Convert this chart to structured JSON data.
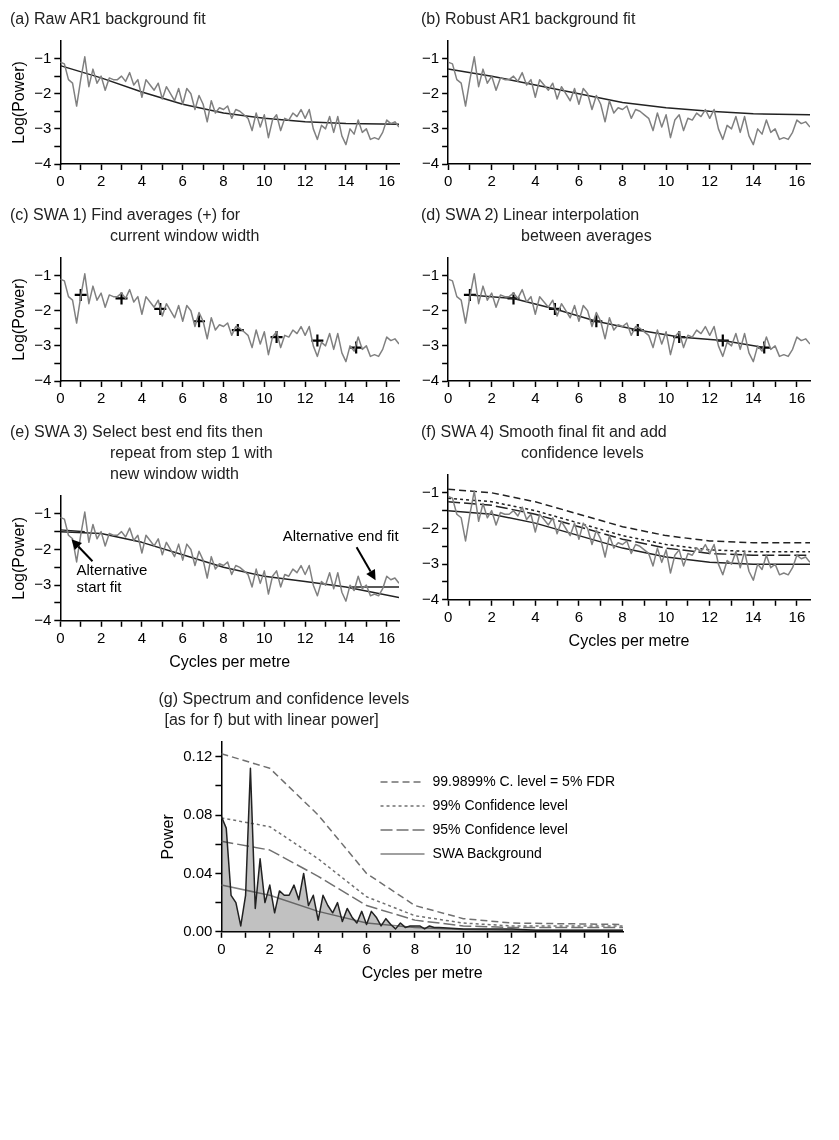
{
  "chart_data": [
    {
      "type": "line",
      "title": "(a) Raw AR1 background fit",
      "ylabel": "Log(Power)",
      "xlim": [
        0,
        16.6
      ],
      "ylim": [
        -4,
        -0.5
      ],
      "xticks": [
        0,
        {
          "value": 1,
          "label": null
        },
        2,
        {
          "value": 3,
          "label": null
        },
        4,
        {
          "value": 5,
          "label": null
        },
        6,
        {
          "value": 7,
          "label": null
        },
        8,
        {
          "value": 9,
          "label": null
        },
        10,
        {
          "value": 11,
          "label": null
        },
        12,
        {
          "value": 13,
          "label": null
        },
        14,
        {
          "value": 15,
          "label": null
        },
        16
      ],
      "yticks": [
        -4,
        {
          "value": -3.5,
          "label": null
        },
        -3,
        {
          "value": -2.5,
          "label": null
        },
        -2,
        {
          "value": -1.5,
          "label": null
        },
        -1
      ],
      "x": [
        0,
        0.2,
        0.4,
        0.6,
        0.8,
        1,
        1.2,
        1.4,
        1.6,
        1.8,
        2,
        2.2,
        2.4,
        2.6,
        2.8,
        3,
        3.2,
        3.4,
        3.6,
        3.8,
        4,
        4.2,
        4.4,
        4.6,
        4.8,
        5,
        5.2,
        5.4,
        5.6,
        5.8,
        6,
        6.2,
        6.4,
        6.6,
        6.8,
        7,
        7.2,
        7.4,
        7.6,
        7.8,
        8,
        8.2,
        8.4,
        8.6,
        8.8,
        9,
        9.2,
        9.4,
        9.6,
        9.8,
        10,
        10.2,
        10.4,
        10.6,
        10.8,
        11,
        11.2,
        11.4,
        11.6,
        11.8,
        12,
        12.2,
        12.4,
        12.6,
        12.8,
        13,
        13.2,
        13.4,
        13.6,
        13.8,
        14,
        14.2,
        14.4,
        14.6,
        14.8,
        15,
        15.2,
        15.4,
        15.6,
        15.8,
        16,
        16.2,
        16.4,
        16.6
      ],
      "series": [
        {
          "color": "#808080",
          "values": [
            -1.1,
            -1.15,
            -1.6,
            -1.7,
            -2.35,
            -1.6,
            -0.95,
            -1.8,
            -1.3,
            -1.7,
            -1.5,
            -1.9,
            -1.55,
            -1.6,
            -1.6,
            -1.5,
            -1.65,
            -1.4,
            -1.75,
            -1.6,
            -2.1,
            -1.6,
            -1.75,
            -1.9,
            -1.7,
            -2.15,
            -1.8,
            -2.0,
            -2.2,
            -1.85,
            -2.3,
            -1.85,
            -2.0,
            -2.45,
            -2.05,
            -2.3,
            -2.8,
            -2.2,
            -2.55,
            -2.4,
            -2.45,
            -2.35,
            -2.7,
            -2.45,
            -2.5,
            -2.6,
            -2.7,
            -3.05,
            -2.55,
            -2.95,
            -2.6,
            -3.25,
            -2.75,
            -2.6,
            -3.05,
            -2.7,
            -2.75,
            -2.55,
            -2.65,
            -2.45,
            -2.7,
            -2.45,
            -3.0,
            -3.3,
            -2.9,
            -3.0,
            -2.65,
            -3.1,
            -2.65,
            -3.2,
            -3.45,
            -3.0,
            -3.15,
            -2.75,
            -3.1,
            -3.0,
            -3.3,
            -3.25,
            -3.3,
            -3.1,
            -2.75,
            -2.85,
            -2.8,
            -2.95
          ]
        },
        {
          "color": "#222222",
          "x": [
            0,
            2,
            4,
            6,
            8,
            10,
            12,
            14,
            16.6
          ],
          "values": [
            -1.2,
            -1.55,
            -1.95,
            -2.3,
            -2.55,
            -2.7,
            -2.8,
            -2.85,
            -2.87
          ]
        }
      ]
    },
    {
      "type": "line",
      "title": "(b) Robust AR1 background fit",
      "xlim": [
        0,
        16.6
      ],
      "ylim": [
        -4,
        -0.5
      ],
      "xticks": [
        0,
        {
          "value": 1,
          "label": null
        },
        2,
        {
          "value": 3,
          "label": null
        },
        4,
        {
          "value": 5,
          "label": null
        },
        6,
        {
          "value": 7,
          "label": null
        },
        8,
        {
          "value": 9,
          "label": null
        },
        10,
        {
          "value": 11,
          "label": null
        },
        12,
        {
          "value": 13,
          "label": null
        },
        14,
        {
          "value": 15,
          "label": null
        },
        16
      ],
      "yticks": [
        -4,
        {
          "value": -3.5,
          "label": null
        },
        -3,
        {
          "value": -2.5,
          "label": null
        },
        -2,
        {
          "value": -1.5,
          "label": null
        },
        -1
      ],
      "x": [
        0,
        0.2,
        0.4,
        0.6,
        0.8,
        1,
        1.2,
        1.4,
        1.6,
        1.8,
        2,
        2.2,
        2.4,
        2.6,
        2.8,
        3,
        3.2,
        3.4,
        3.6,
        3.8,
        4,
        4.2,
        4.4,
        4.6,
        4.8,
        5,
        5.2,
        5.4,
        5.6,
        5.8,
        6,
        6.2,
        6.4,
        6.6,
        6.8,
        7,
        7.2,
        7.4,
        7.6,
        7.8,
        8,
        8.2,
        8.4,
        8.6,
        8.8,
        9,
        9.2,
        9.4,
        9.6,
        9.8,
        10,
        10.2,
        10.4,
        10.6,
        10.8,
        11,
        11.2,
        11.4,
        11.6,
        11.8,
        12,
        12.2,
        12.4,
        12.6,
        12.8,
        13,
        13.2,
        13.4,
        13.6,
        13.8,
        14,
        14.2,
        14.4,
        14.6,
        14.8,
        15,
        15.2,
        15.4,
        15.6,
        15.8,
        16,
        16.2,
        16.4,
        16.6
      ],
      "series": [
        {
          "color": "#808080",
          "values": [
            -1.1,
            -1.15,
            -1.6,
            -1.7,
            -2.35,
            -1.6,
            -0.95,
            -1.8,
            -1.3,
            -1.7,
            -1.5,
            -1.9,
            -1.55,
            -1.6,
            -1.6,
            -1.5,
            -1.65,
            -1.4,
            -1.75,
            -1.6,
            -2.1,
            -1.6,
            -1.75,
            -1.9,
            -1.7,
            -2.15,
            -1.8,
            -2.0,
            -2.2,
            -1.85,
            -2.3,
            -1.85,
            -2.0,
            -2.45,
            -2.05,
            -2.3,
            -2.8,
            -2.2,
            -2.55,
            -2.4,
            -2.45,
            -2.35,
            -2.7,
            -2.45,
            -2.5,
            -2.6,
            -2.7,
            -3.05,
            -2.55,
            -2.95,
            -2.6,
            -3.25,
            -2.75,
            -2.6,
            -3.05,
            -2.7,
            -2.75,
            -2.55,
            -2.65,
            -2.45,
            -2.7,
            -2.45,
            -3.0,
            -3.3,
            -2.9,
            -3.0,
            -2.65,
            -3.1,
            -2.65,
            -3.2,
            -3.45,
            -3.0,
            -3.15,
            -2.75,
            -3.1,
            -3.0,
            -3.3,
            -3.25,
            -3.3,
            -3.1,
            -2.75,
            -2.85,
            -2.8,
            -2.95
          ]
        },
        {
          "color": "#222222",
          "x": [
            0,
            2,
            4,
            6,
            8,
            10,
            12,
            14,
            16.6
          ],
          "values": [
            -1.3,
            -1.5,
            -1.75,
            -2.0,
            -2.25,
            -2.4,
            -2.5,
            -2.57,
            -2.6
          ]
        }
      ]
    },
    {
      "type": "line",
      "title": "(c) SWA 1) Find averages (+) for\ncurrent window width",
      "ylabel": "Log(Power)",
      "xlim": [
        0,
        16.6
      ],
      "ylim": [
        -4,
        -0.5
      ],
      "xticks": [
        0,
        {
          "value": 1,
          "label": null
        },
        2,
        {
          "value": 3,
          "label": null
        },
        4,
        {
          "value": 5,
          "label": null
        },
        6,
        {
          "value": 7,
          "label": null
        },
        8,
        {
          "value": 9,
          "label": null
        },
        10,
        {
          "value": 11,
          "label": null
        },
        12,
        {
          "value": 13,
          "label": null
        },
        14,
        {
          "value": 15,
          "label": null
        },
        16
      ],
      "yticks": [
        -4,
        {
          "value": -3.5,
          "label": null
        },
        -3,
        {
          "value": -2.5,
          "label": null
        },
        -2,
        {
          "value": -1.5,
          "label": null
        },
        -1
      ],
      "x": [
        0,
        0.2,
        0.4,
        0.6,
        0.8,
        1,
        1.2,
        1.4,
        1.6,
        1.8,
        2,
        2.2,
        2.4,
        2.6,
        2.8,
        3,
        3.2,
        3.4,
        3.6,
        3.8,
        4,
        4.2,
        4.4,
        4.6,
        4.8,
        5,
        5.2,
        5.4,
        5.6,
        5.8,
        6,
        6.2,
        6.4,
        6.6,
        6.8,
        7,
        7.2,
        7.4,
        7.6,
        7.8,
        8,
        8.2,
        8.4,
        8.6,
        8.8,
        9,
        9.2,
        9.4,
        9.6,
        9.8,
        10,
        10.2,
        10.4,
        10.6,
        10.8,
        11,
        11.2,
        11.4,
        11.6,
        11.8,
        12,
        12.2,
        12.4,
        12.6,
        12.8,
        13,
        13.2,
        13.4,
        13.6,
        13.8,
        14,
        14.2,
        14.4,
        14.6,
        14.8,
        15,
        15.2,
        15.4,
        15.6,
        15.8,
        16,
        16.2,
        16.4,
        16.6
      ],
      "series": [
        {
          "color": "#808080",
          "values": [
            -1.1,
            -1.15,
            -1.6,
            -1.7,
            -2.35,
            -1.6,
            -0.95,
            -1.8,
            -1.3,
            -1.7,
            -1.5,
            -1.9,
            -1.55,
            -1.6,
            -1.6,
            -1.5,
            -1.65,
            -1.4,
            -1.75,
            -1.6,
            -2.1,
            -1.6,
            -1.75,
            -1.9,
            -1.7,
            -2.15,
            -1.8,
            -2.0,
            -2.2,
            -1.85,
            -2.3,
            -1.85,
            -2.0,
            -2.45,
            -2.05,
            -2.3,
            -2.8,
            -2.2,
            -2.55,
            -2.4,
            -2.45,
            -2.35,
            -2.7,
            -2.45,
            -2.5,
            -2.6,
            -2.7,
            -3.05,
            -2.55,
            -2.95,
            -2.6,
            -3.25,
            -2.75,
            -2.6,
            -3.05,
            -2.7,
            -2.75,
            -2.55,
            -2.65,
            -2.45,
            -2.7,
            -2.45,
            -3.0,
            -3.3,
            -2.9,
            -3.0,
            -2.65,
            -3.1,
            -2.65,
            -3.2,
            -3.45,
            -3.0,
            -3.15,
            -2.75,
            -3.1,
            -3.0,
            -3.3,
            -3.25,
            -3.3,
            -3.1,
            -2.75,
            -2.85,
            -2.8,
            -2.95
          ]
        },
        {
          "type": "scatter",
          "marker": "cross",
          "color": "#000000",
          "x": [
            1,
            3,
            4.9,
            6.8,
            8.7,
            10.6,
            12.6,
            14.5
          ],
          "values": [
            -1.55,
            -1.65,
            -1.95,
            -2.3,
            -2.55,
            -2.75,
            -2.85,
            -3.05
          ]
        }
      ]
    },
    {
      "type": "line",
      "title": "(d) SWA 2) Linear interpolation\nbetween averages",
      "xlim": [
        0,
        16.6
      ],
      "ylim": [
        -4,
        -0.5
      ],
      "xticks": [
        0,
        {
          "value": 1,
          "label": null
        },
        2,
        {
          "value": 3,
          "label": null
        },
        4,
        {
          "value": 5,
          "label": null
        },
        6,
        {
          "value": 7,
          "label": null
        },
        8,
        {
          "value": 9,
          "label": null
        },
        10,
        {
          "value": 11,
          "label": null
        },
        12,
        {
          "value": 13,
          "label": null
        },
        14,
        {
          "value": 15,
          "label": null
        },
        16
      ],
      "yticks": [
        -4,
        {
          "value": -3.5,
          "label": null
        },
        -3,
        {
          "value": -2.5,
          "label": null
        },
        -2,
        {
          "value": -1.5,
          "label": null
        },
        -1
      ],
      "x": [
        0,
        0.2,
        0.4,
        0.6,
        0.8,
        1,
        1.2,
        1.4,
        1.6,
        1.8,
        2,
        2.2,
        2.4,
        2.6,
        2.8,
        3,
        3.2,
        3.4,
        3.6,
        3.8,
        4,
        4.2,
        4.4,
        4.6,
        4.8,
        5,
        5.2,
        5.4,
        5.6,
        5.8,
        6,
        6.2,
        6.4,
        6.6,
        6.8,
        7,
        7.2,
        7.4,
        7.6,
        7.8,
        8,
        8.2,
        8.4,
        8.6,
        8.8,
        9,
        9.2,
        9.4,
        9.6,
        9.8,
        10,
        10.2,
        10.4,
        10.6,
        10.8,
        11,
        11.2,
        11.4,
        11.6,
        11.8,
        12,
        12.2,
        12.4,
        12.6,
        12.8,
        13,
        13.2,
        13.4,
        13.6,
        13.8,
        14,
        14.2,
        14.4,
        14.6,
        14.8,
        15,
        15.2,
        15.4,
        15.6,
        15.8,
        16,
        16.2,
        16.4,
        16.6
      ],
      "series": [
        {
          "color": "#808080",
          "values": [
            -1.1,
            -1.15,
            -1.6,
            -1.7,
            -2.35,
            -1.6,
            -0.95,
            -1.8,
            -1.3,
            -1.7,
            -1.5,
            -1.9,
            -1.55,
            -1.6,
            -1.6,
            -1.5,
            -1.65,
            -1.4,
            -1.75,
            -1.6,
            -2.1,
            -1.6,
            -1.75,
            -1.9,
            -1.7,
            -2.15,
            -1.8,
            -2.0,
            -2.2,
            -1.85,
            -2.3,
            -1.85,
            -2.0,
            -2.45,
            -2.05,
            -2.3,
            -2.8,
            -2.2,
            -2.55,
            -2.4,
            -2.45,
            -2.35,
            -2.7,
            -2.45,
            -2.5,
            -2.6,
            -2.7,
            -3.05,
            -2.55,
            -2.95,
            -2.6,
            -3.25,
            -2.75,
            -2.6,
            -3.05,
            -2.7,
            -2.75,
            -2.55,
            -2.65,
            -2.45,
            -2.7,
            -2.45,
            -3.0,
            -3.3,
            -2.9,
            -3.0,
            -2.65,
            -3.1,
            -2.65,
            -3.2,
            -3.45,
            -3.0,
            -3.15,
            -2.75,
            -3.1,
            -3.0,
            -3.3,
            -3.25,
            -3.3,
            -3.1,
            -2.75,
            -2.85,
            -2.8,
            -2.95
          ]
        },
        {
          "color": "#222222",
          "x": [
            1,
            3,
            4.9,
            6.8,
            8.7,
            10.6,
            12.6,
            14.5
          ],
          "values": [
            -1.55,
            -1.65,
            -1.95,
            -2.3,
            -2.55,
            -2.75,
            -2.85,
            -3.05
          ]
        },
        {
          "type": "scatter",
          "marker": "cross",
          "color": "#000000",
          "x": [
            1,
            3,
            4.9,
            6.8,
            8.7,
            10.6,
            12.6,
            14.5
          ],
          "values": [
            -1.55,
            -1.65,
            -1.95,
            -2.3,
            -2.55,
            -2.75,
            -2.85,
            -3.05
          ]
        }
      ]
    },
    {
      "type": "line",
      "title": "(e) SWA 3) Select best end fits then\nrepeat from step 1 with\nnew window width",
      "ylabel": "Log(Power)",
      "xlabel": "Cycles per metre",
      "xlim": [
        0,
        16.6
      ],
      "ylim": [
        -4,
        -0.5
      ],
      "xticks": [
        0,
        {
          "value": 1,
          "label": null
        },
        2,
        {
          "value": 3,
          "label": null
        },
        4,
        {
          "value": 5,
          "label": null
        },
        6,
        {
          "value": 7,
          "label": null
        },
        8,
        {
          "value": 9,
          "label": null
        },
        10,
        {
          "value": 11,
          "label": null
        },
        12,
        {
          "value": 13,
          "label": null
        },
        14,
        {
          "value": 15,
          "label": null
        },
        16
      ],
      "yticks": [
        -4,
        {
          "value": -3.5,
          "label": null
        },
        -3,
        {
          "value": -2.5,
          "label": null
        },
        -2,
        {
          "value": -1.5,
          "label": null
        },
        -1
      ],
      "annotations": [
        {
          "text": "Alternative\nstart fit",
          "x": 0.4,
          "y": -1.6
        },
        {
          "text": "Alternative end fit",
          "x": 15.6,
          "y": -3.0
        }
      ],
      "x": [
        0,
        0.2,
        0.4,
        0.6,
        0.8,
        1,
        1.2,
        1.4,
        1.6,
        1.8,
        2,
        2.2,
        2.4,
        2.6,
        2.8,
        3,
        3.2,
        3.4,
        3.6,
        3.8,
        4,
        4.2,
        4.4,
        4.6,
        4.8,
        5,
        5.2,
        5.4,
        5.6,
        5.8,
        6,
        6.2,
        6.4,
        6.6,
        6.8,
        7,
        7.2,
        7.4,
        7.6,
        7.8,
        8,
        8.2,
        8.4,
        8.6,
        8.8,
        9,
        9.2,
        9.4,
        9.6,
        9.8,
        10,
        10.2,
        10.4,
        10.6,
        10.8,
        11,
        11.2,
        11.4,
        11.6,
        11.8,
        12,
        12.2,
        12.4,
        12.6,
        12.8,
        13,
        13.2,
        13.4,
        13.6,
        13.8,
        14,
        14.2,
        14.4,
        14.6,
        14.8,
        15,
        15.2,
        15.4,
        15.6,
        15.8,
        16,
        16.2,
        16.4,
        16.6
      ],
      "series": [
        {
          "color": "#808080",
          "values": [
            -1.1,
            -1.15,
            -1.6,
            -1.7,
            -2.35,
            -1.6,
            -0.95,
            -1.8,
            -1.3,
            -1.7,
            -1.5,
            -1.9,
            -1.55,
            -1.6,
            -1.6,
            -1.5,
            -1.65,
            -1.4,
            -1.75,
            -1.6,
            -2.1,
            -1.6,
            -1.75,
            -1.9,
            -1.7,
            -2.15,
            -1.8,
            -2.0,
            -2.2,
            -1.85,
            -2.3,
            -1.85,
            -2.0,
            -2.45,
            -2.05,
            -2.3,
            -2.8,
            -2.2,
            -2.55,
            -2.4,
            -2.45,
            -2.35,
            -2.7,
            -2.45,
            -2.5,
            -2.6,
            -2.7,
            -3.05,
            -2.55,
            -2.95,
            -2.6,
            -3.25,
            -2.75,
            -2.6,
            -3.05,
            -2.7,
            -2.75,
            -2.55,
            -2.65,
            -2.45,
            -2.7,
            -2.45,
            -3.0,
            -3.3,
            -2.9,
            -3.0,
            -2.65,
            -3.1,
            -2.65,
            -3.2,
            -3.45,
            -3.0,
            -3.15,
            -2.75,
            -3.1,
            -3.0,
            -3.3,
            -3.25,
            -3.3,
            -3.1,
            -2.75,
            -2.85,
            -2.8,
            -2.95
          ]
        },
        {
          "color": "#222222",
          "x": [
            0,
            2,
            4,
            6,
            8,
            10,
            12,
            14,
            16.6
          ],
          "values": [
            -1.5,
            -1.55,
            -1.8,
            -2.15,
            -2.5,
            -2.75,
            -2.9,
            -3.05,
            -3.35
          ]
        },
        {
          "color": "#222222",
          "x": [
            0,
            1.2
          ],
          "values": [
            -1.45,
            -1.5
          ]
        },
        {
          "color": "#222222",
          "x": [
            14.2,
            16.6
          ],
          "values": [
            -3.05,
            -3.05
          ]
        }
      ]
    },
    {
      "type": "line",
      "title": "(f) SWA 4) Smooth final fit and add\nconfidence levels",
      "xlabel": "Cycles per metre",
      "xlim": [
        0,
        16.6
      ],
      "ylim": [
        -4,
        -0.5
      ],
      "xticks": [
        0,
        {
          "value": 1,
          "label": null
        },
        2,
        {
          "value": 3,
          "label": null
        },
        4,
        {
          "value": 5,
          "label": null
        },
        6,
        {
          "value": 7,
          "label": null
        },
        8,
        {
          "value": 9,
          "label": null
        },
        10,
        {
          "value": 11,
          "label": null
        },
        12,
        {
          "value": 13,
          "label": null
        },
        14,
        {
          "value": 15,
          "label": null
        },
        16
      ],
      "yticks": [
        -4,
        {
          "value": -3.5,
          "label": null
        },
        -3,
        {
          "value": -2.5,
          "label": null
        },
        -2,
        {
          "value": -1.5,
          "label": null
        },
        -1
      ],
      "x": [
        0,
        0.2,
        0.4,
        0.6,
        0.8,
        1,
        1.2,
        1.4,
        1.6,
        1.8,
        2,
        2.2,
        2.4,
        2.6,
        2.8,
        3,
        3.2,
        3.4,
        3.6,
        3.8,
        4,
        4.2,
        4.4,
        4.6,
        4.8,
        5,
        5.2,
        5.4,
        5.6,
        5.8,
        6,
        6.2,
        6.4,
        6.6,
        6.8,
        7,
        7.2,
        7.4,
        7.6,
        7.8,
        8,
        8.2,
        8.4,
        8.6,
        8.8,
        9,
        9.2,
        9.4,
        9.6,
        9.8,
        10,
        10.2,
        10.4,
        10.6,
        10.8,
        11,
        11.2,
        11.4,
        11.6,
        11.8,
        12,
        12.2,
        12.4,
        12.6,
        12.8,
        13,
        13.2,
        13.4,
        13.6,
        13.8,
        14,
        14.2,
        14.4,
        14.6,
        14.8,
        15,
        15.2,
        15.4,
        15.6,
        15.8,
        16,
        16.2,
        16.4,
        16.6
      ],
      "series": [
        {
          "color": "#808080",
          "values": [
            -1.1,
            -1.15,
            -1.6,
            -1.7,
            -2.35,
            -1.6,
            -0.95,
            -1.8,
            -1.3,
            -1.7,
            -1.5,
            -1.9,
            -1.55,
            -1.6,
            -1.6,
            -1.5,
            -1.65,
            -1.4,
            -1.75,
            -1.6,
            -2.1,
            -1.6,
            -1.75,
            -1.9,
            -1.7,
            -2.15,
            -1.8,
            -2.0,
            -2.2,
            -1.85,
            -2.3,
            -1.85,
            -2.0,
            -2.45,
            -2.05,
            -2.3,
            -2.8,
            -2.2,
            -2.55,
            -2.4,
            -2.45,
            -2.35,
            -2.7,
            -2.45,
            -2.5,
            -2.6,
            -2.7,
            -3.05,
            -2.55,
            -2.95,
            -2.6,
            -3.25,
            -2.75,
            -2.6,
            -3.05,
            -2.7,
            -2.75,
            -2.55,
            -2.65,
            -2.45,
            -2.7,
            -2.45,
            -3.0,
            -3.3,
            -2.9,
            -3.0,
            -2.65,
            -3.1,
            -2.65,
            -3.2,
            -3.45,
            -3.0,
            -3.15,
            -2.75,
            -3.1,
            -3.0,
            -3.3,
            -3.25,
            -3.3,
            -3.1,
            -2.75,
            -2.85,
            -2.8,
            -2.95
          ]
        },
        {
          "color": "#222222",
          "x": [
            0,
            2,
            4,
            6,
            8,
            10,
            12,
            14,
            16.6
          ],
          "values": [
            -1.5,
            -1.6,
            -1.85,
            -2.2,
            -2.55,
            -2.8,
            -2.95,
            -3.0,
            -3.0
          ]
        },
        {
          "color": "#222222",
          "line_style": "dashed",
          "x": [
            0,
            2,
            4,
            6,
            8,
            10,
            12,
            14,
            16.6
          ],
          "values": [
            -0.9,
            -1.0,
            -1.25,
            -1.6,
            -1.95,
            -2.2,
            -2.35,
            -2.4,
            -2.4
          ]
        },
        {
          "color": "#222222",
          "line_style": "dashed",
          "x": [
            0,
            2,
            4,
            6,
            8,
            10,
            12,
            14,
            16.6
          ],
          "values": [
            -1.15,
            -1.25,
            -1.5,
            -1.85,
            -2.2,
            -2.45,
            -2.6,
            -2.65,
            -2.65
          ]
        },
        {
          "color": "#222222",
          "line_style": "dashed",
          "x": [
            0,
            2,
            4,
            6,
            8,
            10,
            12,
            14,
            16.6
          ],
          "values": [
            -1.25,
            -1.35,
            -1.6,
            -1.95,
            -2.3,
            -2.55,
            -2.7,
            -2.75,
            -2.75
          ]
        }
      ]
    },
    {
      "type": "area",
      "title": "(g) Spectrum and confidence levels\n[as for f) but with linear  power]",
      "ylabel": "Power",
      "xlabel": "Cycles per metre",
      "legend": "top right",
      "xlim": [
        0,
        16.6
      ],
      "ylim": [
        0,
        0.13
      ],
      "xticks": [
        0,
        {
          "value": 1,
          "label": null
        },
        2,
        {
          "value": 3,
          "label": null
        },
        4,
        {
          "value": 5,
          "label": null
        },
        6,
        {
          "value": 7,
          "label": null
        },
        8,
        {
          "value": 9,
          "label": null
        },
        10,
        {
          "value": 11,
          "label": null
        },
        12,
        {
          "value": 13,
          "label": null
        },
        14,
        {
          "value": 15,
          "label": null
        },
        16
      ],
      "yticks": [
        {
          "value": 0,
          "label": "0.00"
        },
        {
          "value": 0.02,
          "label": null
        },
        {
          "value": 0.04,
          "label": "0.04"
        },
        {
          "value": 0.06,
          "label": null
        },
        {
          "value": 0.08,
          "label": "0.08"
        },
        {
          "value": 0.1,
          "label": null
        },
        {
          "value": 0.12,
          "label": "0.12"
        }
      ],
      "x": [
        0,
        0.2,
        0.4,
        0.6,
        0.8,
        1,
        1.2,
        1.4,
        1.6,
        1.8,
        2,
        2.2,
        2.4,
        2.6,
        2.8,
        3,
        3.2,
        3.4,
        3.6,
        3.8,
        4,
        4.2,
        4.4,
        4.6,
        4.8,
        5,
        5.2,
        5.4,
        5.6,
        5.8,
        6,
        6.2,
        6.4,
        6.6,
        6.8,
        7,
        7.2,
        7.4,
        7.6,
        7.8,
        8,
        8.2,
        8.4,
        8.6,
        8.8,
        9,
        10,
        11,
        12,
        13,
        14,
        15,
        16,
        16.6
      ],
      "series": [
        {
          "color": "#222222",
          "values": [
            0.079,
            0.071,
            0.025,
            0.02,
            0.004,
            0.025,
            0.112,
            0.016,
            0.05,
            0.02,
            0.032,
            0.013,
            0.028,
            0.025,
            0.025,
            0.032,
            0.022,
            0.04,
            0.018,
            0.025,
            0.008,
            0.025,
            0.018,
            0.013,
            0.02,
            0.007,
            0.016,
            0.01,
            0.006,
            0.014,
            0.005,
            0.014,
            0.01,
            0.004,
            0.009,
            0.005,
            0.002,
            0.006,
            0.003,
            0.004,
            0.004,
            0.004,
            0.002,
            0.004,
            0.003,
            0.003,
            0.002,
            0.002,
            0.002,
            0.001,
            0.001,
            0.001,
            0.001,
            0.001
          ]
        },
        {
          "type": "line",
          "name": "99.9899% C. level = 5% FDR",
          "color": "#707070",
          "line_style": "dashed",
          "x": [
            0,
            2,
            4,
            6,
            8,
            10,
            12,
            16.6
          ],
          "values": [
            0.122,
            0.112,
            0.08,
            0.04,
            0.018,
            0.009,
            0.006,
            0.005
          ]
        },
        {
          "type": "line",
          "name": "99% Confidence level",
          "color": "#707070",
          "line_style": "dashed",
          "x": [
            0,
            2,
            4,
            6,
            8,
            10,
            12,
            16.6
          ],
          "values": [
            0.078,
            0.072,
            0.05,
            0.024,
            0.011,
            0.006,
            0.004,
            0.004
          ]
        },
        {
          "type": "line",
          "name": "95% Confidence level",
          "color": "#707070",
          "line_style": "dashed",
          "x": [
            0,
            2,
            4,
            6,
            8,
            10,
            12,
            16.6
          ],
          "values": [
            0.062,
            0.056,
            0.038,
            0.018,
            0.008,
            0.004,
            0.003,
            0.003
          ]
        },
        {
          "type": "line",
          "name": "SWA Background",
          "color": "#808080",
          "x": [
            0,
            2,
            4,
            6,
            8,
            10,
            12,
            16.6
          ],
          "values": [
            0.032,
            0.025,
            0.014,
            0.006,
            0.003,
            0.0016,
            0.001,
            0.001
          ]
        }
      ]
    }
  ]
}
